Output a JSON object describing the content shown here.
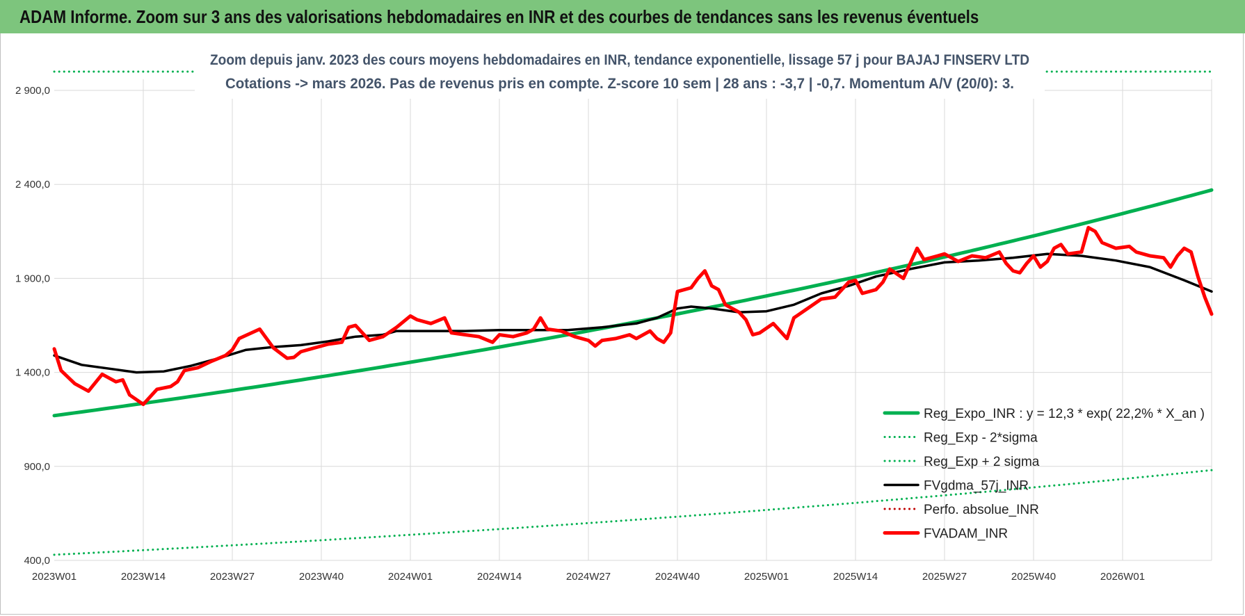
{
  "banner": {
    "title": "ADAM Informe. Zoom sur 3 ans des valorisations hebdomadaires en INR et des courbes de tendances sans les revenus éventuels"
  },
  "colors": {
    "banner_bg": "#7dc57d",
    "regression": "#00b050",
    "sigma": "#00b050",
    "smoothed": "#000000",
    "perfo": "#c00000",
    "price": "#ff0000",
    "grid": "#d9d9d9"
  },
  "chart_data": {
    "type": "line",
    "title": "Zoom depuis janv. 2023 des cours moyens hebdomadaires en INR, tendance exponentielle, lissage 57 j pour BAJAJ FINSERV LTD",
    "subtitle": "Cotations -> mars 2026. Pas de revenus pris en compte. Z-score 10 sem | 28 ans : -3,7 | -0,7. Momentum A/V (20/0): 3.",
    "xlabel": "",
    "ylabel": "",
    "ylim": [
      400,
      3000
    ],
    "yticks": [
      "400,0",
      "900,0",
      "1 400,0",
      "1 900,0",
      "2 400,0",
      "2 900,0"
    ],
    "ytick_values": [
      400,
      900,
      1400,
      1900,
      2400,
      2900
    ],
    "x_weeks_total": 169,
    "xtick_labels": [
      "2023W01",
      "2023W14",
      "2023W27",
      "2023W40",
      "2024W01",
      "2024W14",
      "2024W27",
      "2024W40",
      "2025W01",
      "2025W14",
      "2025W27",
      "2025W40",
      "2026W01"
    ],
    "xtick_week_index": [
      0,
      13,
      26,
      39,
      52,
      65,
      78,
      91,
      104,
      117,
      130,
      143,
      156
    ],
    "grid": true,
    "legend_position": "bottom-right",
    "series": [
      {
        "name": "Reg_Expo_INR : y = 12,3 * exp( 22,2% *  X_an )",
        "style": "solid-thick",
        "color": "#00b050",
        "exp_start": 1170,
        "exp_end": 2370
      },
      {
        "name": "Reg_Exp - 2*sigma",
        "style": "dotted",
        "color": "#00b050",
        "exp_start": 430,
        "exp_end": 880
      },
      {
        "name": "Reg_Exp + 2 sigma",
        "style": "dotted",
        "color": "#00b050",
        "exp_start": 3000,
        "exp_end": 3000
      },
      {
        "name": "FVgdma_57j_INR",
        "style": "solid",
        "color": "#000000",
        "points": [
          [
            0,
            1490
          ],
          [
            4,
            1440
          ],
          [
            8,
            1420
          ],
          [
            12,
            1400
          ],
          [
            16,
            1405
          ],
          [
            20,
            1435
          ],
          [
            24,
            1475
          ],
          [
            28,
            1520
          ],
          [
            32,
            1535
          ],
          [
            36,
            1545
          ],
          [
            40,
            1565
          ],
          [
            44,
            1590
          ],
          [
            48,
            1600
          ],
          [
            50,
            1620
          ],
          [
            55,
            1620
          ],
          [
            60,
            1620
          ],
          [
            65,
            1625
          ],
          [
            70,
            1625
          ],
          [
            75,
            1625
          ],
          [
            80,
            1640
          ],
          [
            85,
            1660
          ],
          [
            88,
            1690
          ],
          [
            91,
            1740
          ],
          [
            93,
            1750
          ],
          [
            96,
            1740
          ],
          [
            100,
            1720
          ],
          [
            104,
            1725
          ],
          [
            108,
            1760
          ],
          [
            112,
            1820
          ],
          [
            116,
            1860
          ],
          [
            120,
            1910
          ],
          [
            125,
            1950
          ],
          [
            130,
            1985
          ],
          [
            135,
            1995
          ],
          [
            140,
            2010
          ],
          [
            145,
            2030
          ],
          [
            150,
            2020
          ],
          [
            155,
            1995
          ],
          [
            160,
            1960
          ],
          [
            165,
            1890
          ],
          [
            169,
            1830
          ]
        ]
      },
      {
        "name": "Perfo. absolue_INR",
        "style": "dotted",
        "color": "#c00000",
        "points": []
      },
      {
        "name": "FVADAM_INR",
        "style": "solid-thick",
        "color": "#ff0000",
        "points": [
          [
            0,
            1525
          ],
          [
            1,
            1410
          ],
          [
            3,
            1340
          ],
          [
            5,
            1300
          ],
          [
            7,
            1390
          ],
          [
            9,
            1350
          ],
          [
            10,
            1360
          ],
          [
            11,
            1280
          ],
          [
            13,
            1230
          ],
          [
            15,
            1310
          ],
          [
            17,
            1325
          ],
          [
            18,
            1350
          ],
          [
            19,
            1410
          ],
          [
            21,
            1425
          ],
          [
            23,
            1460
          ],
          [
            25,
            1490
          ],
          [
            26,
            1520
          ],
          [
            27,
            1580
          ],
          [
            30,
            1630
          ],
          [
            32,
            1530
          ],
          [
            34,
            1475
          ],
          [
            35,
            1480
          ],
          [
            36,
            1510
          ],
          [
            38,
            1530
          ],
          [
            40,
            1550
          ],
          [
            42,
            1560
          ],
          [
            43,
            1640
          ],
          [
            44,
            1650
          ],
          [
            46,
            1570
          ],
          [
            48,
            1590
          ],
          [
            50,
            1640
          ],
          [
            52,
            1700
          ],
          [
            53,
            1680
          ],
          [
            55,
            1660
          ],
          [
            57,
            1690
          ],
          [
            58,
            1610
          ],
          [
            60,
            1600
          ],
          [
            62,
            1590
          ],
          [
            64,
            1560
          ],
          [
            65,
            1600
          ],
          [
            67,
            1590
          ],
          [
            69,
            1610
          ],
          [
            70,
            1630
          ],
          [
            71,
            1690
          ],
          [
            72,
            1630
          ],
          [
            74,
            1620
          ],
          [
            76,
            1590
          ],
          [
            78,
            1570
          ],
          [
            79,
            1540
          ],
          [
            80,
            1570
          ],
          [
            82,
            1580
          ],
          [
            84,
            1600
          ],
          [
            85,
            1580
          ],
          [
            87,
            1620
          ],
          [
            88,
            1580
          ],
          [
            89,
            1560
          ],
          [
            90,
            1610
          ],
          [
            91,
            1830
          ],
          [
            93,
            1850
          ],
          [
            94,
            1900
          ],
          [
            95,
            1940
          ],
          [
            96,
            1860
          ],
          [
            97,
            1840
          ],
          [
            98,
            1760
          ],
          [
            100,
            1720
          ],
          [
            101,
            1680
          ],
          [
            102,
            1600
          ],
          [
            103,
            1610
          ],
          [
            105,
            1660
          ],
          [
            107,
            1580
          ],
          [
            108,
            1690
          ],
          [
            110,
            1740
          ],
          [
            112,
            1790
          ],
          [
            114,
            1800
          ],
          [
            116,
            1880
          ],
          [
            117,
            1890
          ],
          [
            118,
            1820
          ],
          [
            120,
            1840
          ],
          [
            121,
            1880
          ],
          [
            122,
            1950
          ],
          [
            124,
            1900
          ],
          [
            126,
            2060
          ],
          [
            127,
            2000
          ],
          [
            129,
            2020
          ],
          [
            130,
            2030
          ],
          [
            132,
            1990
          ],
          [
            134,
            2020
          ],
          [
            136,
            2010
          ],
          [
            138,
            2040
          ],
          [
            139,
            1980
          ],
          [
            140,
            1940
          ],
          [
            141,
            1930
          ],
          [
            142,
            1980
          ],
          [
            143,
            2020
          ],
          [
            144,
            1960
          ],
          [
            145,
            1990
          ],
          [
            146,
            2060
          ],
          [
            147,
            2080
          ],
          [
            148,
            2030
          ],
          [
            150,
            2040
          ],
          [
            151,
            2170
          ],
          [
            152,
            2150
          ],
          [
            153,
            2090
          ],
          [
            155,
            2060
          ],
          [
            157,
            2070
          ],
          [
            158,
            2040
          ],
          [
            160,
            2020
          ],
          [
            162,
            2010
          ],
          [
            163,
            1960
          ],
          [
            164,
            2020
          ],
          [
            165,
            2060
          ],
          [
            166,
            2040
          ],
          [
            167,
            1910
          ],
          [
            168,
            1800
          ],
          [
            169,
            1710
          ]
        ]
      }
    ]
  }
}
